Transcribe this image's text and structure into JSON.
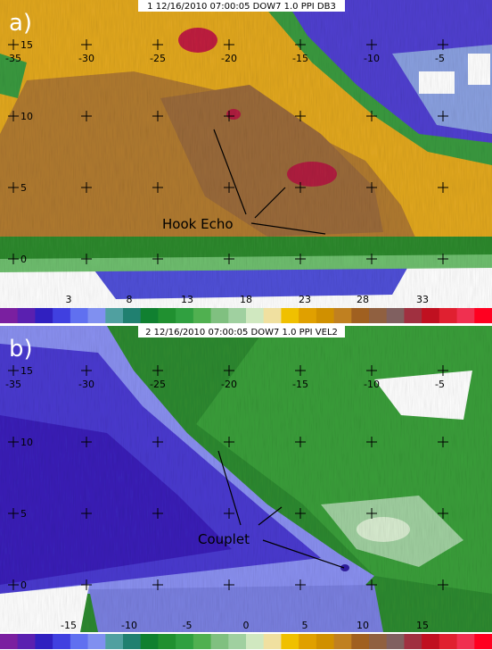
{
  "panels": [
    {
      "label": "a)",
      "header": "1 12/16/2010 07:00:05 DOW7 1.0 PPI DB3",
      "grid_x": [
        "-35",
        "-30",
        "-25",
        "-20",
        "-15",
        "-10",
        "-5"
      ],
      "grid_y": [
        "15",
        "10",
        "5",
        "0"
      ],
      "annotation": "Hook Echo",
      "colorbar_labels": [
        "3",
        "8",
        "13",
        "18",
        "23",
        "28",
        "33"
      ]
    },
    {
      "label": "b)",
      "header": "2 12/16/2010 07:00:05 DOW7 1.0 PPI VEL2",
      "grid_x": [
        "-35",
        "-30",
        "-25",
        "-20",
        "-15",
        "-10",
        "-5"
      ],
      "grid_y": [
        "15",
        "10",
        "5",
        "0"
      ],
      "annotation": "Couplet",
      "colorbar_labels": [
        "-15",
        "-10",
        "-5",
        "0",
        "5",
        "10",
        "15"
      ]
    }
  ]
}
